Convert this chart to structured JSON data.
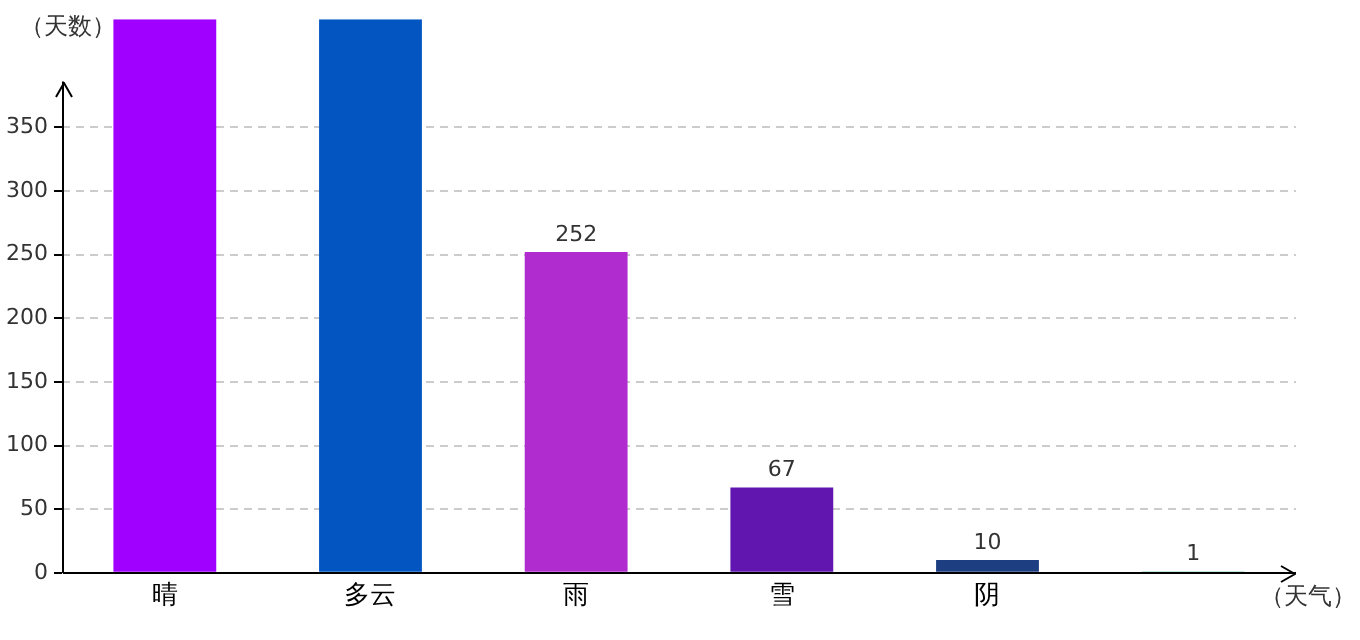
{
  "chart_data": {
    "type": "bar",
    "xlabel": "（天气）",
    "ylabel": "（天数）",
    "categories": [
      "晴",
      "多云",
      "雨",
      "雪",
      "阴",
      null
    ],
    "values": [
      435,
      435,
      252,
      67,
      10,
      1
    ],
    "colors": [
      "#a000ff",
      "#0356c2",
      "#b12ccf",
      "#6216b0",
      "#1d3f82",
      "#11a36a"
    ],
    "value_labels": [
      null,
      null,
      "252",
      "67",
      "10",
      "1"
    ],
    "ylim": [
      0,
      435
    ],
    "yticks": [
      0,
      50,
      100,
      150,
      200,
      250,
      300,
      350
    ],
    "grid": "y",
    "legend": false
  }
}
